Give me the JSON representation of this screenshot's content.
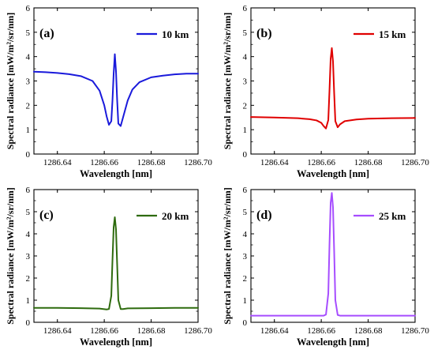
{
  "chart_data": [
    {
      "type": "line",
      "panel_label": "(a)",
      "xlabel": "Wavelength [nm]",
      "ylabel": "Spectral radiance [mW/m²/sr/nm]",
      "xlim": [
        1286.63,
        1286.7
      ],
      "ylim": [
        0,
        6
      ],
      "xticks": [
        "1286.64",
        "1286.66",
        "1286.68",
        "1286.70"
      ],
      "yticks": [
        "0",
        "1",
        "2",
        "3",
        "4",
        "5",
        "6"
      ],
      "legend_position": "top-right",
      "series": [
        {
          "name": "10 km",
          "color": "#1a1adb",
          "x": [
            1286.63,
            1286.635,
            1286.64,
            1286.645,
            1286.65,
            1286.655,
            1286.658,
            1286.66,
            1286.661,
            1286.662,
            1286.663,
            1286.6635,
            1286.664,
            1286.6645,
            1286.665,
            1286.6655,
            1286.666,
            1286.667,
            1286.668,
            1286.67,
            1286.672,
            1286.675,
            1286.68,
            1286.685,
            1286.69,
            1286.695,
            1286.7
          ],
          "y": [
            3.38,
            3.36,
            3.33,
            3.28,
            3.2,
            3.0,
            2.6,
            2.0,
            1.55,
            1.2,
            1.35,
            2.2,
            3.3,
            4.1,
            3.4,
            2.2,
            1.25,
            1.15,
            1.5,
            2.2,
            2.65,
            2.95,
            3.15,
            3.22,
            3.27,
            3.3,
            3.3
          ]
        }
      ]
    },
    {
      "type": "line",
      "panel_label": "(b)",
      "xlabel": "Wavelength [nm]",
      "ylabel": "Spectral radiance [mW/m²/sr/nm]",
      "xlim": [
        1286.63,
        1286.7
      ],
      "ylim": [
        0,
        6
      ],
      "xticks": [
        "1286.64",
        "1286.66",
        "1286.68",
        "1286.70"
      ],
      "yticks": [
        "0",
        "1",
        "2",
        "3",
        "4",
        "5",
        "6"
      ],
      "legend_position": "top-right",
      "series": [
        {
          "name": "15 km",
          "color": "#e00000",
          "x": [
            1286.63,
            1286.64,
            1286.65,
            1286.655,
            1286.658,
            1286.66,
            1286.661,
            1286.662,
            1286.663,
            1286.6635,
            1286.664,
            1286.6645,
            1286.665,
            1286.6655,
            1286.666,
            1286.667,
            1286.668,
            1286.67,
            1286.675,
            1286.68,
            1286.69,
            1286.7
          ],
          "y": [
            1.52,
            1.5,
            1.47,
            1.43,
            1.38,
            1.28,
            1.15,
            1.05,
            1.4,
            2.6,
            3.9,
            4.35,
            3.8,
            2.5,
            1.35,
            1.1,
            1.22,
            1.35,
            1.42,
            1.45,
            1.47,
            1.48
          ]
        }
      ]
    },
    {
      "type": "line",
      "panel_label": "(c)",
      "xlabel": "Wavelength [nm]",
      "ylabel": "Spectral radiance [mW/m²/sr/nm]",
      "xlim": [
        1286.63,
        1286.7
      ],
      "ylim": [
        0,
        6
      ],
      "xticks": [
        "1286.64",
        "1286.66",
        "1286.68",
        "1286.70"
      ],
      "yticks": [
        "0",
        "1",
        "2",
        "3",
        "4",
        "5",
        "6"
      ],
      "legend_position": "top-right",
      "series": [
        {
          "name": "20 km",
          "color": "#2e6b0e",
          "x": [
            1286.63,
            1286.64,
            1286.65,
            1286.658,
            1286.661,
            1286.662,
            1286.663,
            1286.6635,
            1286.664,
            1286.6645,
            1286.665,
            1286.6655,
            1286.666,
            1286.667,
            1286.668,
            1286.67,
            1286.68,
            1286.69,
            1286.7
          ],
          "y": [
            0.65,
            0.65,
            0.64,
            0.62,
            0.58,
            0.6,
            1.2,
            2.8,
            4.3,
            4.75,
            4.2,
            2.6,
            1.0,
            0.6,
            0.6,
            0.63,
            0.64,
            0.65,
            0.65
          ]
        }
      ]
    },
    {
      "type": "line",
      "panel_label": "(d)",
      "xlabel": "Wavelength [nm]",
      "ylabel": "Spectral radiance [mW/m²/sr/nm]",
      "xlim": [
        1286.63,
        1286.7
      ],
      "ylim": [
        0,
        6
      ],
      "xticks": [
        "1286.64",
        "1286.66",
        "1286.68",
        "1286.70"
      ],
      "yticks": [
        "0",
        "1",
        "2",
        "3",
        "4",
        "5",
        "6"
      ],
      "legend_position": "top-right",
      "series": [
        {
          "name": "25 km",
          "color": "#a64dff",
          "x": [
            1286.63,
            1286.64,
            1286.65,
            1286.658,
            1286.661,
            1286.662,
            1286.663,
            1286.6635,
            1286.664,
            1286.6645,
            1286.665,
            1286.6655,
            1286.666,
            1286.667,
            1286.668,
            1286.67,
            1286.68,
            1286.69,
            1286.7
          ],
          "y": [
            0.3,
            0.3,
            0.3,
            0.3,
            0.3,
            0.35,
            1.3,
            3.5,
            5.4,
            5.85,
            5.2,
            3.2,
            1.0,
            0.33,
            0.3,
            0.3,
            0.3,
            0.3,
            0.3
          ]
        }
      ]
    }
  ]
}
